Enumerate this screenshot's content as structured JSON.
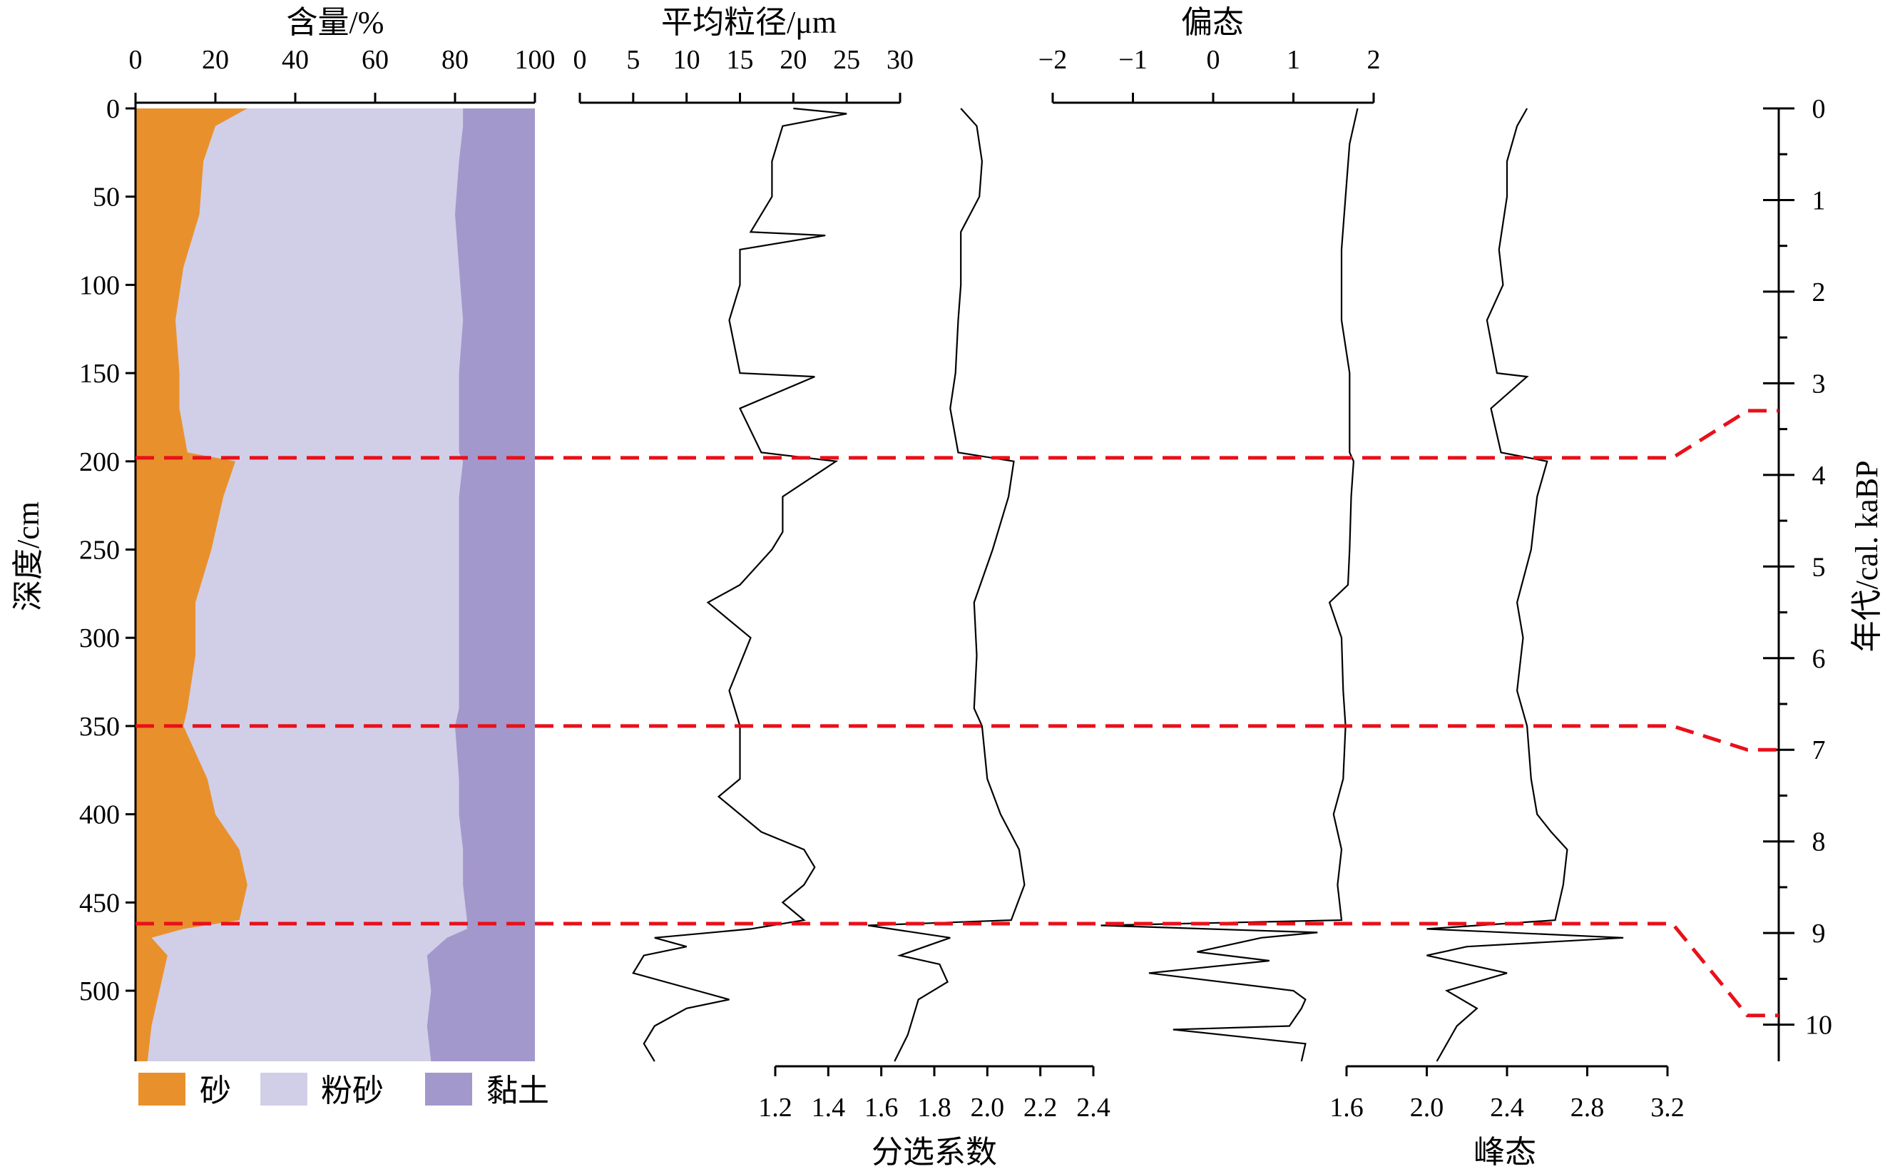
{
  "chart_data": [
    {
      "type": "area",
      "title": "含量/%",
      "ylabel": "深度/cm",
      "xlim": [
        0,
        100
      ],
      "x_ticks": [
        "0",
        "20",
        "40",
        "60",
        "80",
        "100"
      ],
      "ylim": [
        0,
        540
      ],
      "y_ticks": [
        "0",
        "50",
        "100",
        "150",
        "200",
        "250",
        "300",
        "350",
        "400",
        "450",
        "500"
      ],
      "stacked": true,
      "series": [
        {
          "name": "砂",
          "color": "#e8912c",
          "depth": [
            0,
            10,
            30,
            60,
            90,
            120,
            150,
            170,
            195,
            200,
            220,
            250,
            280,
            310,
            340,
            350,
            380,
            400,
            420,
            440,
            460,
            465,
            470,
            480,
            500,
            520,
            540
          ],
          "values": [
            28,
            20,
            17,
            16,
            12,
            10,
            11,
            11,
            13,
            25,
            22,
            19,
            15,
            15,
            13,
            12,
            18,
            20,
            26,
            28,
            26,
            12,
            4,
            8,
            6,
            4,
            3
          ]
        },
        {
          "name": "粉砂",
          "color": "#d1cee8",
          "depth": [
            0,
            10,
            30,
            60,
            90,
            120,
            150,
            170,
            195,
            200,
            220,
            250,
            280,
            310,
            340,
            350,
            380,
            400,
            420,
            440,
            460,
            465,
            470,
            480,
            500,
            520,
            540
          ],
          "values": [
            54,
            62,
            64,
            64,
            69,
            72,
            70,
            70,
            68,
            57,
            59,
            62,
            66,
            66,
            68,
            68,
            63,
            61,
            56,
            54,
            57,
            71,
            74,
            65,
            68,
            69,
            71
          ]
        },
        {
          "name": "黏土",
          "color": "#a398cb",
          "depth": [
            0,
            10,
            30,
            60,
            90,
            120,
            150,
            170,
            195,
            200,
            220,
            250,
            280,
            310,
            340,
            350,
            380,
            400,
            420,
            440,
            460,
            465,
            470,
            480,
            500,
            520,
            540
          ],
          "values": [
            18,
            18,
            19,
            20,
            19,
            18,
            19,
            19,
            19,
            18,
            19,
            19,
            19,
            19,
            19,
            20,
            19,
            19,
            18,
            18,
            17,
            17,
            22,
            27,
            26,
            27,
            26
          ]
        }
      ]
    },
    {
      "type": "line",
      "title": "平均粒径/μm",
      "xlim": [
        0,
        30
      ],
      "x_ticks": [
        "0",
        "5",
        "10",
        "15",
        "20",
        "25",
        "30"
      ],
      "ylim": [
        0,
        540
      ],
      "series": [
        {
          "name": "",
          "depth": [
            0,
            3,
            10,
            30,
            50,
            70,
            72,
            80,
            100,
            120,
            150,
            152,
            170,
            195,
            200,
            220,
            240,
            250,
            270,
            280,
            300,
            330,
            350,
            380,
            390,
            400,
            410,
            420,
            430,
            440,
            450,
            460,
            465,
            470,
            475,
            480,
            490,
            500,
            505,
            510,
            520,
            530,
            540
          ],
          "values": [
            20,
            25,
            19,
            18,
            18,
            16,
            23,
            15,
            15,
            14,
            15,
            22,
            15,
            17,
            24,
            19,
            19,
            18,
            15,
            12,
            16,
            14,
            15,
            15,
            13,
            15,
            17,
            21,
            22,
            21,
            19,
            21,
            16,
            7,
            10,
            6,
            5,
            11,
            14,
            10,
            7,
            6,
            7
          ]
        }
      ]
    },
    {
      "type": "line",
      "title": "分选系数",
      "xlim": [
        1.2,
        2.4
      ],
      "x_ticks": [
        "1.2",
        "1.4",
        "1.6",
        "1.8",
        "2.0",
        "2.2",
        "2.4"
      ],
      "ylim": [
        0,
        540
      ],
      "series": [
        {
          "name": "",
          "depth": [
            0,
            10,
            30,
            50,
            70,
            100,
            120,
            150,
            170,
            195,
            200,
            220,
            250,
            280,
            310,
            340,
            350,
            380,
            400,
            420,
            440,
            460,
            463,
            470,
            480,
            485,
            495,
            505,
            515,
            525,
            540
          ],
          "values": [
            1.9,
            1.96,
            1.98,
            1.97,
            1.9,
            1.9,
            1.89,
            1.88,
            1.86,
            1.89,
            2.1,
            2.08,
            2.02,
            1.95,
            1.96,
            1.95,
            1.98,
            2.0,
            2.05,
            2.12,
            2.14,
            2.09,
            1.55,
            1.86,
            1.67,
            1.82,
            1.85,
            1.74,
            1.72,
            1.7,
            1.65
          ]
        }
      ]
    },
    {
      "type": "line",
      "title": "偏态",
      "xlim": [
        -2,
        2
      ],
      "x_ticks": [
        "−2",
        "−1",
        "0",
        "1",
        "2"
      ],
      "ylim": [
        0,
        540
      ],
      "series": [
        {
          "name": "",
          "depth": [
            0,
            20,
            50,
            80,
            120,
            150,
            195,
            200,
            220,
            250,
            270,
            280,
            300,
            330,
            350,
            380,
            400,
            420,
            440,
            460,
            463,
            467,
            470,
            478,
            483,
            490,
            500,
            505,
            510,
            520,
            522,
            530,
            540
          ],
          "values": [
            1.8,
            1.7,
            1.65,
            1.6,
            1.6,
            1.7,
            1.7,
            1.75,
            1.72,
            1.7,
            1.68,
            1.45,
            1.6,
            1.62,
            1.65,
            1.62,
            1.5,
            1.6,
            1.55,
            1.6,
            -1.4,
            1.3,
            0.6,
            -0.2,
            0.7,
            -0.8,
            1.0,
            1.15,
            1.1,
            0.95,
            -0.5,
            1.15,
            1.1
          ]
        }
      ]
    },
    {
      "type": "line",
      "title": "峰态",
      "xlim": [
        1.6,
        3.2
      ],
      "x_ticks": [
        "1.6",
        "2.0",
        "2.4",
        "2.8",
        "3.2"
      ],
      "ylim": [
        0,
        540
      ],
      "series": [
        {
          "name": "",
          "depth": [
            0,
            10,
            30,
            50,
            80,
            100,
            120,
            150,
            152,
            170,
            195,
            200,
            220,
            250,
            280,
            300,
            330,
            350,
            380,
            400,
            410,
            420,
            440,
            460,
            465,
            470,
            475,
            480,
            490,
            500,
            510,
            520,
            530,
            540
          ],
          "values": [
            2.5,
            2.45,
            2.4,
            2.4,
            2.36,
            2.38,
            2.3,
            2.35,
            2.5,
            2.32,
            2.37,
            2.6,
            2.55,
            2.52,
            2.45,
            2.48,
            2.45,
            2.5,
            2.52,
            2.55,
            2.62,
            2.7,
            2.68,
            2.64,
            2.0,
            2.98,
            2.2,
            2.0,
            2.4,
            2.1,
            2.25,
            2.15,
            2.1,
            2.05
          ]
        }
      ]
    },
    {
      "type": "line",
      "ylabel": "年代/cal. kaBP",
      "ylim": [
        0,
        10.4
      ],
      "y_ticks": [
        "0",
        "1",
        "2",
        "3",
        "4",
        "5",
        "6",
        "7",
        "8",
        "9",
        "10"
      ],
      "series": []
    }
  ],
  "boundaries": {
    "color": "#e8101a",
    "depths": [
      198,
      350,
      462
    ],
    "ages": [
      3.3,
      7.0,
      9.9
    ]
  },
  "panels": {
    "grain_content": {
      "title": "含量/%",
      "ylabel": "深度/cm"
    },
    "mean_size": {
      "title": "平均粒径/μm"
    },
    "sorting": {
      "title": "分选系数"
    },
    "skewness": {
      "title": "偏态"
    },
    "kurtosis": {
      "title": "峰态"
    },
    "age": {
      "ylabel": "年代/cal. kaBP"
    }
  },
  "legend": {
    "items": [
      {
        "label": "砂",
        "color": "#e8912c"
      },
      {
        "label": "粉砂",
        "color": "#d1cee8"
      },
      {
        "label": "黏土",
        "color": "#a398cb"
      }
    ]
  }
}
